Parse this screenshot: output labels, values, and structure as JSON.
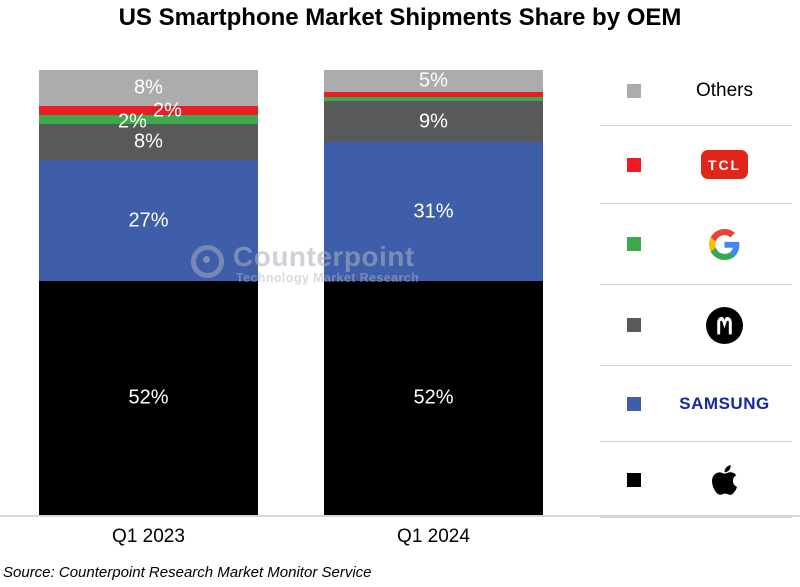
{
  "title": "US Smartphone Market Shipments Share by OEM",
  "source": "Source: Counterpoint Research Market Monitor Service",
  "watermark": {
    "name": "Counterpoint",
    "subtitle": "Technology Market Research"
  },
  "colors": {
    "apple": "#000000",
    "samsung": "#3F5EA9",
    "motorola": "#58595B",
    "google": "#3BAA4C",
    "tcl": "#EC1C24",
    "others": "#ACACAC",
    "tcl_logo_badge": "#E1251B",
    "samsung_wordmark": "#1428A0",
    "axis_line": "#D8D8D8"
  },
  "legend": {
    "items": [
      {
        "key": "others",
        "text": "Others"
      },
      {
        "key": "tcl",
        "text": "TCL"
      },
      {
        "key": "google",
        "icon": "google-g-logo"
      },
      {
        "key": "motorola",
        "icon": "motorola-logo"
      },
      {
        "key": "samsung",
        "text": "SAMSUNG"
      },
      {
        "key": "apple",
        "icon": "apple-logo"
      }
    ]
  },
  "chart_data": {
    "type": "bar",
    "subtype": "stacked-percentage-column",
    "title": "US Smartphone Market Shipments Share by OEM",
    "categories": [
      "Q1 2023",
      "Q1 2024"
    ],
    "series": [
      {
        "name": "Apple",
        "color_key": "apple",
        "values": [
          52,
          52
        ],
        "labels": [
          "52%",
          "52%"
        ]
      },
      {
        "name": "Samsung",
        "color_key": "samsung",
        "values": [
          27,
          31
        ],
        "labels": [
          "27%",
          "31%"
        ]
      },
      {
        "name": "Motorola",
        "color_key": "motorola",
        "values": [
          8,
          9
        ],
        "labels": [
          "8%",
          "9%"
        ]
      },
      {
        "name": "Google",
        "color_key": "google",
        "values": [
          2,
          1
        ],
        "labels": [
          "2%",
          ""
        ]
      },
      {
        "name": "TCL",
        "color_key": "tcl",
        "values": [
          2,
          1
        ],
        "labels": [
          "2%",
          ""
        ]
      },
      {
        "name": "Others",
        "color_key": "others",
        "values": [
          8,
          5
        ],
        "labels": [
          "8%",
          "5%"
        ]
      }
    ],
    "stack_order_top_to_bottom": [
      "Others",
      "TCL",
      "Google",
      "Motorola",
      "Samsung",
      "Apple"
    ],
    "value_unit": "%",
    "ylim": [
      0,
      100
    ],
    "grid": false,
    "y_axis_shown": false,
    "legend_position": "right"
  }
}
